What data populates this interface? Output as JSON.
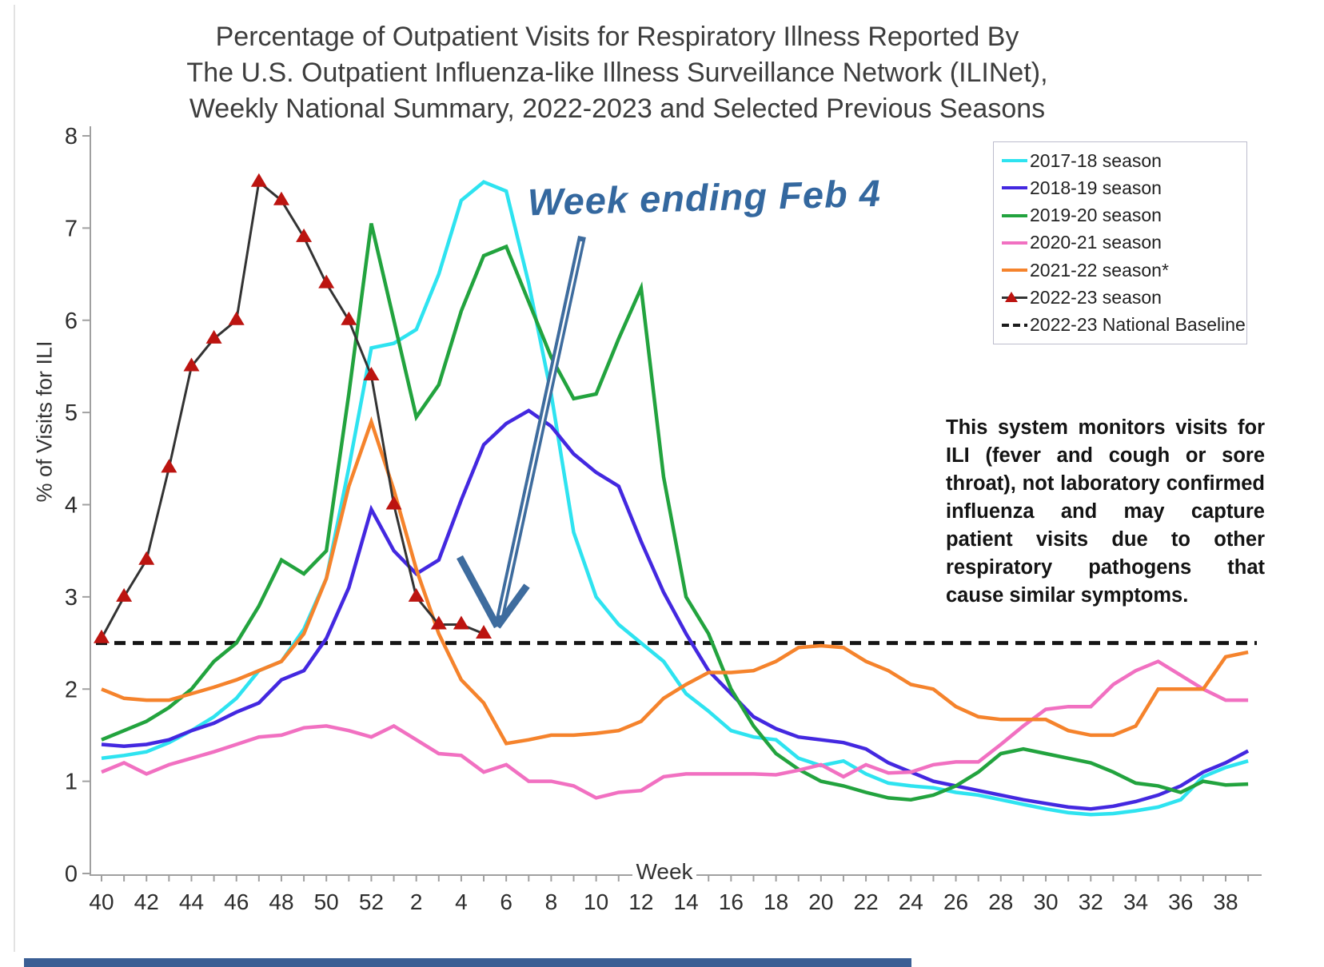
{
  "title": {
    "lines": [
      "Percentage of Outpatient Visits for Respiratory Illness Reported By",
      "The U.S. Outpatient Influenza-like Illness Surveillance Network (ILINet),",
      "Weekly National Summary, 2022-2023 and Selected Previous Seasons"
    ]
  },
  "y_axis": {
    "title": "% of Visits for ILI",
    "ticks": [
      0,
      1,
      2,
      3,
      4,
      5,
      6,
      7,
      8
    ],
    "ylim": [
      0,
      8
    ]
  },
  "x_axis": {
    "label": "Week",
    "tick_labels": [
      "40",
      "42",
      "44",
      "46",
      "48",
      "50",
      "52",
      "2",
      "4",
      "6",
      "8",
      "10",
      "12",
      "14",
      "16",
      "18",
      "20",
      "22",
      "24",
      "26",
      "28",
      "30",
      "32",
      "34",
      "36",
      "38"
    ]
  },
  "legend": {
    "entries": [
      {
        "label": "2017-18 season",
        "style": "line",
        "color": "#2ee3f0"
      },
      {
        "label": "2018-19 season",
        "style": "line",
        "color": "#4328e0"
      },
      {
        "label": "2019-20 season",
        "style": "line",
        "color": "#22a33e"
      },
      {
        "label": "2020-21 season",
        "style": "line",
        "color": "#f170c1"
      },
      {
        "label": "2021-22 season*",
        "style": "line",
        "color": "#f5832c"
      },
      {
        "label": "2022-23 season",
        "style": "triangle-line",
        "color": "#333333"
      },
      {
        "label": "2022-23 National Baseline",
        "style": "dashed",
        "color": "#1c1c1c"
      }
    ]
  },
  "annotation": {
    "text": "Week ending Feb 4",
    "color": "#34689f",
    "arrow_color": "#3e6c9e"
  },
  "note": {
    "text": "This system monitors visits for ILI (fever and cough or sore throat), not laboratory confirmed influenza and may capture patient visits due to other respiratory pathogens that cause similar symptoms."
  },
  "chart_data": {
    "type": "line",
    "xlabel": "Week",
    "ylabel": "% of Visits for ILI",
    "ylim": [
      0,
      8
    ],
    "x_weeks": [
      40,
      41,
      42,
      43,
      44,
      45,
      46,
      47,
      48,
      49,
      50,
      51,
      52,
      1,
      2,
      3,
      4,
      5,
      6,
      7,
      8,
      9,
      10,
      11,
      12,
      13,
      14,
      15,
      16,
      17,
      18,
      19,
      20,
      21,
      22,
      23,
      24,
      25,
      26,
      27,
      28,
      29,
      30,
      31,
      32,
      33,
      34,
      35,
      36,
      37,
      38,
      39
    ],
    "baseline": {
      "label": "2022-23 National Baseline",
      "value": 2.5
    },
    "series": [
      {
        "name": "2017-18 season",
        "color": "#2ee3f0",
        "values": [
          1.25,
          1.28,
          1.32,
          1.42,
          1.55,
          1.7,
          1.9,
          2.2,
          2.3,
          2.65,
          3.2,
          4.4,
          5.7,
          5.75,
          5.9,
          6.5,
          7.3,
          7.5,
          7.4,
          6.4,
          5.2,
          3.7,
          3.0,
          2.7,
          2.5,
          2.3,
          1.95,
          1.76,
          1.55,
          1.48,
          1.45,
          1.25,
          1.17,
          1.22,
          1.08,
          0.98,
          0.95,
          0.93,
          0.88,
          0.85,
          0.8,
          0.75,
          0.7,
          0.66,
          0.64,
          0.65,
          0.68,
          0.72,
          0.8,
          1.05,
          1.15,
          1.22
        ]
      },
      {
        "name": "2018-19 season",
        "color": "#4328e0",
        "values": [
          1.4,
          1.38,
          1.4,
          1.45,
          1.55,
          1.63,
          1.75,
          1.85,
          2.1,
          2.2,
          2.55,
          3.1,
          3.95,
          3.5,
          3.25,
          3.4,
          4.05,
          4.65,
          4.88,
          5.02,
          4.85,
          4.55,
          4.35,
          4.2,
          3.6,
          3.05,
          2.6,
          2.2,
          1.95,
          1.7,
          1.57,
          1.48,
          1.45,
          1.42,
          1.35,
          1.2,
          1.1,
          1.0,
          0.95,
          0.9,
          0.85,
          0.8,
          0.76,
          0.72,
          0.7,
          0.73,
          0.78,
          0.85,
          0.95,
          1.1,
          1.2,
          1.33
        ]
      },
      {
        "name": "2019-20 season",
        "color": "#22a33e",
        "values": [
          1.45,
          1.55,
          1.65,
          1.8,
          2.0,
          2.3,
          2.5,
          2.9,
          3.4,
          3.25,
          3.5,
          5.2,
          7.05,
          6.0,
          4.95,
          5.3,
          6.1,
          6.7,
          6.8,
          6.2,
          5.6,
          5.15,
          5.2,
          5.8,
          6.35,
          4.3,
          3.0,
          2.6,
          2.0,
          1.6,
          1.3,
          1.13,
          1.0,
          0.95,
          0.88,
          0.82,
          0.8,
          0.85,
          0.95,
          1.1,
          1.3,
          1.35,
          1.3,
          1.25,
          1.2,
          1.1,
          0.98,
          0.95,
          0.88,
          1.0,
          0.96,
          0.97
        ]
      },
      {
        "name": "2020-21 season",
        "color": "#f170c1",
        "values": [
          1.1,
          1.2,
          1.08,
          1.18,
          1.25,
          1.32,
          1.4,
          1.48,
          1.5,
          1.58,
          1.6,
          1.55,
          1.48,
          1.6,
          1.45,
          1.3,
          1.28,
          1.1,
          1.18,
          1.0,
          1.0,
          0.95,
          0.82,
          0.88,
          0.9,
          1.05,
          1.08,
          1.08,
          1.08,
          1.08,
          1.07,
          1.12,
          1.18,
          1.05,
          1.18,
          1.09,
          1.1,
          1.18,
          1.21,
          1.21,
          1.4,
          1.6,
          1.78,
          1.81,
          1.81,
          2.05,
          2.2,
          2.3,
          2.15,
          2.0,
          1.88,
          1.88
        ]
      },
      {
        "name": "2021-22 season*",
        "color": "#f5832c",
        "values": [
          2.0,
          1.9,
          1.88,
          1.88,
          1.95,
          2.02,
          2.1,
          2.2,
          2.3,
          2.6,
          3.2,
          4.2,
          4.9,
          4.16,
          3.3,
          2.6,
          2.1,
          1.85,
          1.41,
          1.45,
          1.5,
          1.5,
          1.52,
          1.55,
          1.65,
          1.9,
          2.05,
          2.18,
          2.18,
          2.2,
          2.3,
          2.45,
          2.47,
          2.45,
          2.3,
          2.2,
          2.05,
          2.0,
          1.81,
          1.7,
          1.67,
          1.67,
          1.67,
          1.55,
          1.5,
          1.5,
          1.6,
          2.0,
          2.0,
          2.0,
          2.35,
          2.4
        ]
      },
      {
        "name": "2022-23 season",
        "color": "#333333",
        "marker": "triangle",
        "marker_color": "#bc1410",
        "values": [
          2.55,
          3.0,
          3.4,
          4.4,
          5.5,
          5.8,
          6.0,
          7.5,
          7.3,
          6.9,
          6.4,
          6.0,
          5.4,
          4.0,
          3.0,
          2.7,
          2.7,
          2.6,
          null,
          null,
          null,
          null,
          null,
          null,
          null,
          null,
          null,
          null,
          null,
          null,
          null,
          null,
          null,
          null,
          null,
          null,
          null,
          null,
          null,
          null,
          null,
          null,
          null,
          null,
          null,
          null,
          null,
          null,
          null,
          null,
          null,
          null
        ]
      }
    ],
    "annotation_points_to": {
      "series": "2022-23 season",
      "week": 5,
      "value": 2.6
    }
  }
}
